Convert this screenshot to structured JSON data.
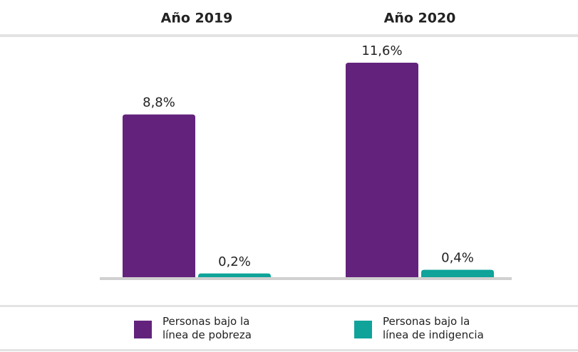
{
  "chart_data": {
    "type": "bar",
    "categories": [
      "Año 2019",
      "Año 2020"
    ],
    "series": [
      {
        "name": "Personas bajo la línea de pobreza",
        "color": "#63237c",
        "values": [
          8.8,
          11.6
        ],
        "value_labels": [
          "8,8%",
          "11,6%"
        ]
      },
      {
        "name": "Personas bajo la línea de indigencia",
        "color": "#0fa39a",
        "values": [
          0.2,
          0.4
        ],
        "value_labels": [
          "0,2%",
          "0,4%"
        ]
      }
    ]
  }
}
